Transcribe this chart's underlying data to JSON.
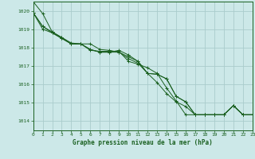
{
  "xlabel": "Graphe pression niveau de la mer (hPa)",
  "xlim": [
    0,
    23
  ],
  "ylim": [
    1013.5,
    1020.5
  ],
  "yticks": [
    1014,
    1015,
    1016,
    1017,
    1018,
    1019,
    1020
  ],
  "xticks": [
    0,
    1,
    2,
    3,
    4,
    5,
    6,
    7,
    8,
    9,
    10,
    11,
    12,
    13,
    14,
    15,
    16,
    17,
    18,
    19,
    20,
    21,
    22,
    23
  ],
  "background_color": "#cce8e8",
  "grid_color": "#aacccc",
  "line_color": "#1a6020",
  "lines": [
    [
      1020.5,
      1019.85,
      1018.85,
      1018.55,
      1018.2,
      1018.2,
      1018.2,
      1017.9,
      1017.85,
      1017.75,
      1017.5,
      1017.25,
      1016.6,
      1016.1,
      1015.5,
      1015.05,
      1014.8,
      1014.35,
      1014.35,
      1014.35,
      1014.35,
      1014.85,
      1014.35,
      1014.35
    ],
    [
      1019.9,
      1019.0,
      1018.8,
      1018.5,
      1018.2,
      1018.2,
      1017.9,
      1017.75,
      1017.75,
      1017.75,
      1017.4,
      1017.15,
      1016.6,
      1016.55,
      1016.3,
      1015.35,
      1015.05,
      1014.35,
      1014.35,
      1014.35,
      1014.35,
      1014.85,
      1014.35,
      1014.35
    ],
    [
      1019.9,
      1019.15,
      1018.8,
      1018.5,
      1018.2,
      1018.2,
      1017.9,
      1017.75,
      1017.75,
      1017.85,
      1017.6,
      1017.25,
      1016.6,
      1016.55,
      1016.3,
      1015.35,
      1015.05,
      1014.35,
      1014.35,
      1014.35,
      1014.35,
      1014.85,
      1014.35,
      1014.35
    ],
    [
      1019.9,
      1019.15,
      1018.85,
      1018.55,
      1018.25,
      1018.2,
      1017.85,
      1017.8,
      1017.8,
      1017.8,
      1017.25,
      1017.1,
      1016.9,
      1016.6,
      1015.8,
      1015.1,
      1014.35,
      1014.35,
      1014.35,
      1014.35,
      1014.35,
      1014.85,
      1014.35,
      1014.35
    ]
  ]
}
